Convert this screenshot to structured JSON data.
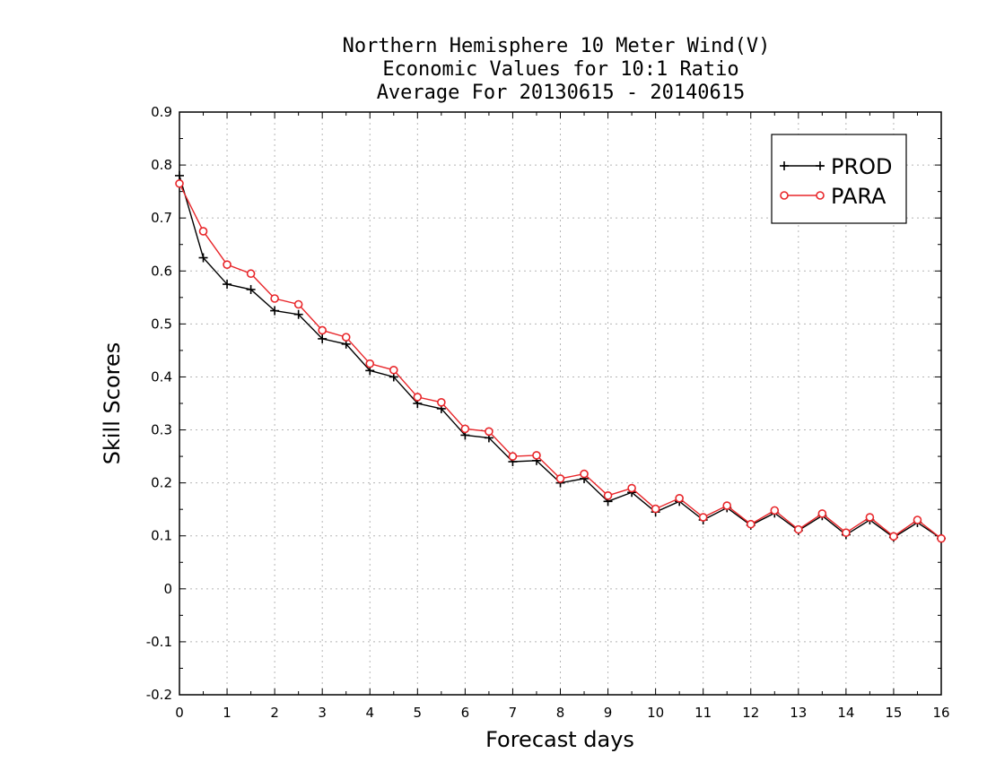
{
  "chart_data": {
    "type": "line",
    "title": "Northern Hemisphere 10 Meter Wind(V)",
    "subtitle": "Economic Values for 10:1 Ratio",
    "subtitle2": "Average For 20130615 - 20140615",
    "xlabel": "Forecast days",
    "ylabel": "Skill Scores",
    "xlim": [
      0,
      16
    ],
    "ylim": [
      -0.2,
      0.9
    ],
    "xticks": [
      0,
      1,
      2,
      3,
      4,
      5,
      6,
      7,
      8,
      9,
      10,
      11,
      12,
      13,
      14,
      15,
      16
    ],
    "yticks": [
      -0.2,
      -0.1,
      0,
      0.1,
      0.2,
      0.3,
      0.4,
      0.5,
      0.6,
      0.7,
      0.8,
      0.9
    ],
    "ytick_labels": [
      "-0.2",
      "-0.1",
      "0",
      "0.1",
      "0.2",
      "0.3",
      "0.4",
      "0.5",
      "0.6",
      "0.7",
      "0.8",
      "0.9"
    ],
    "grid": true,
    "legend_position": "top-right",
    "x": [
      0,
      0.5,
      1,
      1.5,
      2,
      2.5,
      3,
      3.5,
      4,
      4.5,
      5,
      5.5,
      6,
      6.5,
      7,
      7.5,
      8,
      8.5,
      9,
      9.5,
      10,
      10.5,
      11,
      11.5,
      12,
      12.5,
      13,
      13.5,
      14,
      14.5,
      15,
      15.5,
      16
    ],
    "series": [
      {
        "name": "PROD",
        "color": "#000000",
        "marker": "plus",
        "values": [
          0.78,
          0.625,
          0.575,
          0.565,
          0.525,
          0.518,
          0.472,
          0.462,
          0.412,
          0.4,
          0.35,
          0.34,
          0.29,
          0.285,
          0.24,
          0.242,
          0.2,
          0.208,
          0.165,
          0.182,
          0.145,
          0.165,
          0.13,
          0.153,
          0.12,
          0.143,
          0.11,
          0.138,
          0.102,
          0.13,
          0.097,
          0.125,
          0.095
        ]
      },
      {
        "name": "PARA",
        "color": "#e8262a",
        "marker": "circle",
        "values": [
          0.765,
          0.675,
          0.612,
          0.595,
          0.548,
          0.537,
          0.488,
          0.475,
          0.425,
          0.413,
          0.362,
          0.352,
          0.302,
          0.297,
          0.25,
          0.252,
          0.208,
          0.217,
          0.176,
          0.19,
          0.151,
          0.171,
          0.135,
          0.157,
          0.122,
          0.148,
          0.112,
          0.142,
          0.106,
          0.135,
          0.099,
          0.13,
          0.095
        ]
      }
    ]
  }
}
